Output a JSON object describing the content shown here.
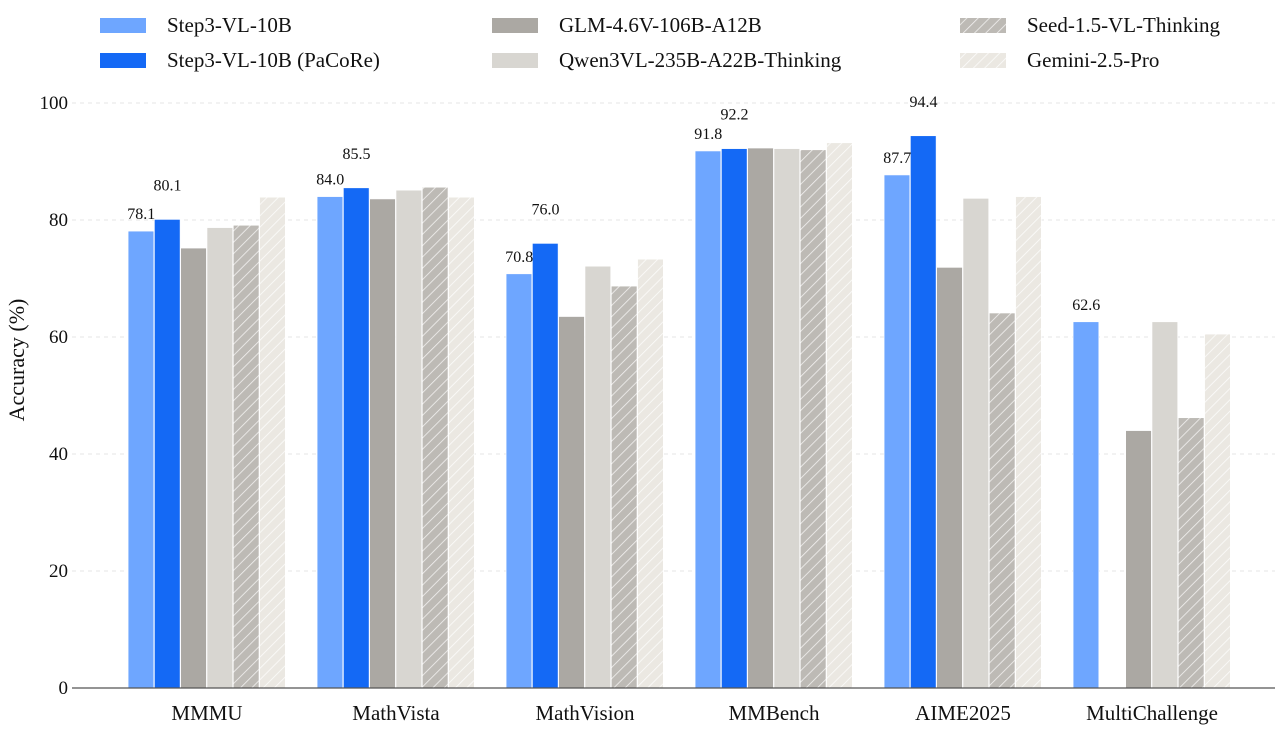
{
  "chart_data": {
    "type": "bar",
    "title": "",
    "xlabel": "",
    "ylabel": "Accuracy (%)",
    "ylim": [
      0,
      100
    ],
    "yticks": [
      0,
      20,
      40,
      60,
      80,
      100
    ],
    "grid": true,
    "legend_position": "top",
    "categories": [
      "MMMU",
      "MathVista",
      "MathVision",
      "MMBench",
      "AIME2025",
      "MultiChallenge"
    ],
    "series": [
      {
        "name": "Step3-VL-10B",
        "values": [
          78.1,
          84.0,
          70.8,
          91.8,
          87.7,
          62.6
        ],
        "color": "#6ea6ff",
        "pattern": "solid",
        "value_labels": [
          "78.1",
          "84.0",
          "70.8",
          "91.8",
          "87.7",
          "62.6"
        ]
      },
      {
        "name": "Step3-VL-10B (PaCoRe)",
        "values": [
          80.1,
          85.5,
          76.0,
          92.2,
          94.4,
          null
        ],
        "color": "#1469f5",
        "pattern": "solid",
        "value_labels": [
          "80.1",
          "85.5",
          "76.0",
          "92.2",
          "94.4",
          ""
        ]
      },
      {
        "name": "GLM-4.6V-106B-A12B",
        "values": [
          75.2,
          83.6,
          63.5,
          92.3,
          71.9,
          44.0
        ],
        "color": "#aba8a3",
        "pattern": "solid"
      },
      {
        "name": "Qwen3VL-235B-A22B-Thinking",
        "values": [
          78.7,
          85.1,
          72.1,
          92.2,
          83.7,
          62.6
        ],
        "color": "#d8d6d1",
        "pattern": "solid"
      },
      {
        "name": "Seed-1.5-VL-Thinking",
        "values": [
          79.1,
          85.6,
          68.7,
          92.0,
          64.1,
          46.2
        ],
        "color": "#bdbab5",
        "pattern": "hatch"
      },
      {
        "name": "Gemini-2.5-Pro",
        "values": [
          83.9,
          83.9,
          73.3,
          93.2,
          84.0,
          60.5
        ],
        "color": "#ebe8e2",
        "pattern": "hatch"
      }
    ]
  }
}
